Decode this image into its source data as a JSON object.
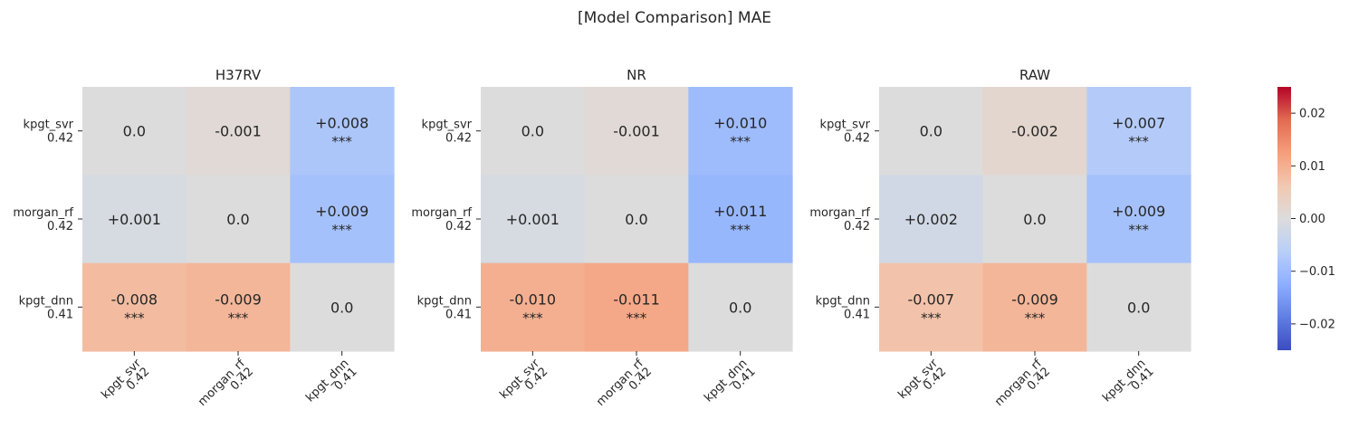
{
  "figure": {
    "title": "[Model Comparison] MAE"
  },
  "chart_data": {
    "type": "heatmap",
    "row_labels": [
      {
        "name": "kpgt_svr",
        "score": "0.42"
      },
      {
        "name": "morgan_rf",
        "score": "0.42"
      },
      {
        "name": "kpgt_dnn",
        "score": "0.41"
      }
    ],
    "col_labels": [
      {
        "name": "kpgt_svr",
        "score": "0.42"
      },
      {
        "name": "morgan_rf",
        "score": "0.42"
      },
      {
        "name": "kpgt_dnn",
        "score": "0.41"
      }
    ],
    "panels": [
      {
        "title": "H37RV",
        "values": [
          [
            0.0,
            -0.001,
            0.008
          ],
          [
            0.001,
            0.0,
            0.009
          ],
          [
            -0.008,
            -0.009,
            0.0
          ]
        ],
        "labels": [
          [
            "0.0",
            "-0.001",
            "+0.008"
          ],
          [
            "+0.001",
            "0.0",
            "+0.009"
          ],
          [
            "-0.008",
            "-0.009",
            "0.0"
          ]
        ],
        "significance": [
          [
            "",
            "",
            "***"
          ],
          [
            "",
            "",
            "***"
          ],
          [
            "***",
            "***",
            ""
          ]
        ]
      },
      {
        "title": "NR",
        "values": [
          [
            0.0,
            -0.001,
            0.01
          ],
          [
            0.001,
            0.0,
            0.011
          ],
          [
            -0.01,
            -0.011,
            0.0
          ]
        ],
        "labels": [
          [
            "0.0",
            "-0.001",
            "+0.010"
          ],
          [
            "+0.001",
            "0.0",
            "+0.011"
          ],
          [
            "-0.010",
            "-0.011",
            "0.0"
          ]
        ],
        "significance": [
          [
            "",
            "",
            "***"
          ],
          [
            "",
            "",
            "***"
          ],
          [
            "***",
            "***",
            ""
          ]
        ]
      },
      {
        "title": "RAW",
        "values": [
          [
            0.0,
            -0.002,
            0.007
          ],
          [
            0.002,
            0.0,
            0.009
          ],
          [
            -0.007,
            -0.009,
            0.0
          ]
        ],
        "labels": [
          [
            "0.0",
            "-0.002",
            "+0.007"
          ],
          [
            "+0.002",
            "0.0",
            "+0.009"
          ],
          [
            "-0.007",
            "-0.009",
            "0.0"
          ]
        ],
        "significance": [
          [
            "",
            "",
            "***"
          ],
          [
            "",
            "",
            "***"
          ],
          [
            "***",
            "***",
            ""
          ]
        ]
      }
    ],
    "colorbar": {
      "colormap": "coolwarm-reversed",
      "range": [
        -0.025,
        0.025
      ],
      "ticks": [
        0.02,
        0.01,
        0.0,
        -0.01,
        -0.02
      ],
      "tick_labels": [
        "0.02",
        "0.01",
        "0.00",
        "−0.01",
        "−0.02"
      ]
    }
  }
}
